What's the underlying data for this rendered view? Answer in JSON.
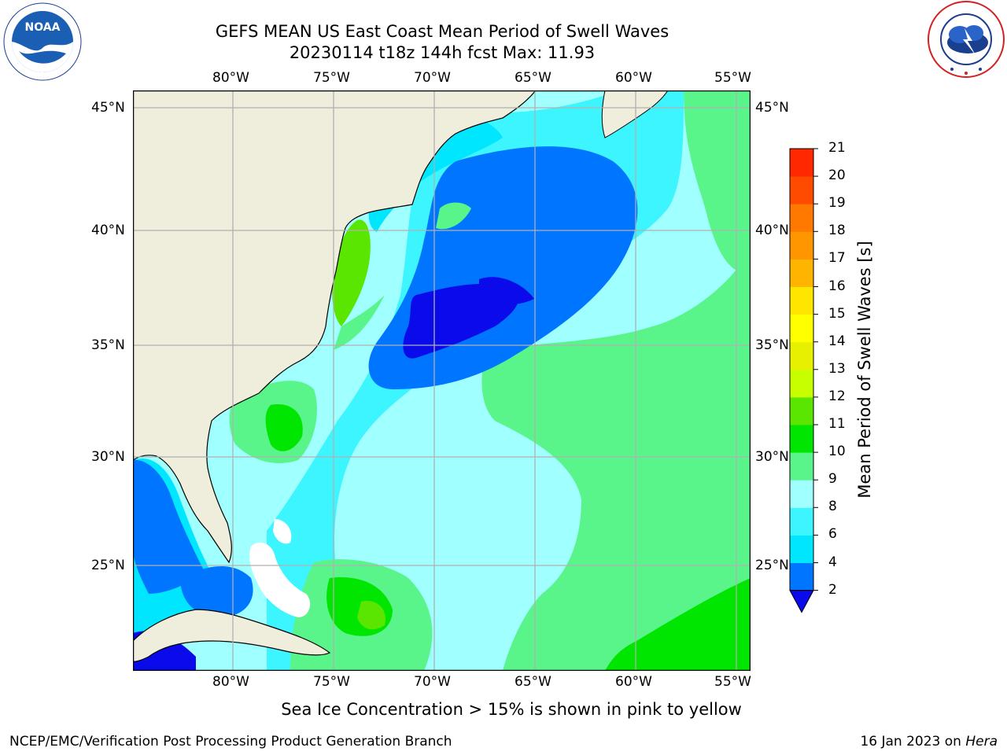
{
  "header": {
    "title_line1": "GEFS MEAN US East Coast Mean Period of Swell Waves",
    "title_line2": "20230114 t18z 144h fcst   Max: 11.93"
  },
  "logos": {
    "left": {
      "name": "noaa-logo",
      "text": "NOAA",
      "ring_text": "NATIONAL OCEANIC AND ATMOSPHERIC ADMINISTRATION · U.S. DEPARTMENT OF COMMERCE"
    },
    "right": {
      "name": "national-weather-service-logo",
      "ring_text": "NATIONAL WEATHER SERVICE"
    }
  },
  "map": {
    "longitude_labels": [
      "80°W",
      "75°W",
      "70°W",
      "65°W",
      "60°W",
      "55°W"
    ],
    "latitude_labels": [
      "45°N",
      "40°N",
      "35°N",
      "30°N",
      "25°N"
    ],
    "extent": {
      "lon_min": -85,
      "lon_max": -54.3,
      "lat_min": 20.3,
      "lat_max": 45.8
    },
    "land_color": "#efeddc",
    "grid_color": "#b0b0b0"
  },
  "colorbar": {
    "title": "Mean Period of Swell Waves [s]",
    "tick_labels": [
      "2",
      "4",
      "6",
      "8",
      "9",
      "10",
      "11",
      "12",
      "13",
      "14",
      "15",
      "16",
      "17",
      "18",
      "19",
      "20",
      "21"
    ],
    "colors": [
      "#0075ff",
      "#00e6ff",
      "#3df5ff",
      "#a0ffff",
      "#5af58a",
      "#00e600",
      "#5ae600",
      "#c8ff00",
      "#e6f000",
      "#ffff00",
      "#ffe600",
      "#ffb400",
      "#ff9600",
      "#ff7800",
      "#ff4b00",
      "#ff2800",
      "#ff0000"
    ],
    "underflow_color": "#0a0aeb"
  },
  "caption": "Sea Ice Concentration > 15% is shown in pink to yellow",
  "footer": {
    "left": "NCEP/EMC/Verification Post Processing Product Generation Branch",
    "right_date": "16 Jan 2023 on ",
    "right_host": "Hera"
  }
}
